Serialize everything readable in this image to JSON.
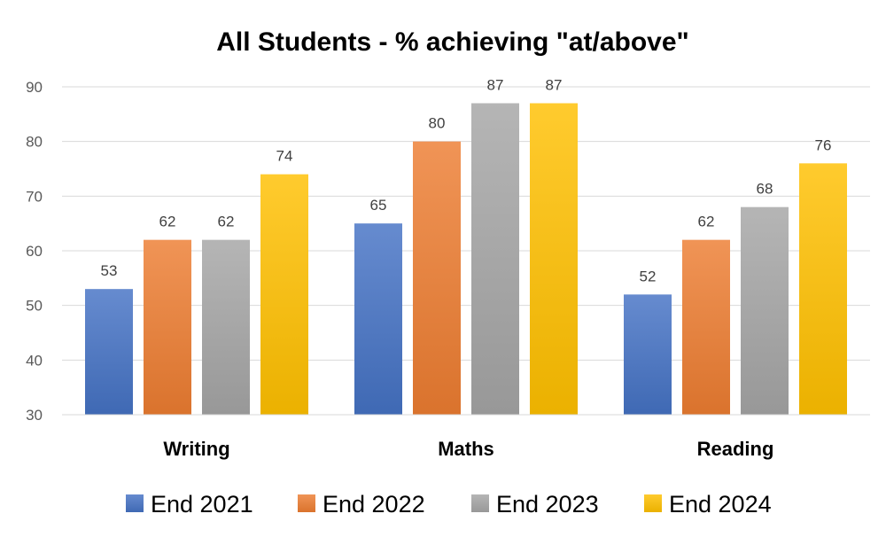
{
  "chart_data": {
    "type": "bar",
    "title": "All Students - % achieving \"at/above\"",
    "xlabel": "",
    "ylabel": "",
    "categories": [
      "Writing",
      "Maths",
      "Reading"
    ],
    "series": [
      {
        "name": "End 2021",
        "values": [
          53,
          65,
          52
        ],
        "color": "#4472c4"
      },
      {
        "name": "End 2022",
        "values": [
          62,
          80,
          62
        ],
        "color": "#ed7d31"
      },
      {
        "name": "End 2023",
        "values": [
          62,
          87,
          68
        ],
        "color": "#a5a5a5"
      },
      {
        "name": "End 2024",
        "values": [
          74,
          87,
          76
        ],
        "color": "#ffc000"
      }
    ],
    "ylim": [
      30,
      90
    ],
    "yticks": [
      30,
      40,
      50,
      60,
      70,
      80,
      90
    ],
    "grid": true,
    "legend_position": "bottom",
    "data_labels": true
  }
}
